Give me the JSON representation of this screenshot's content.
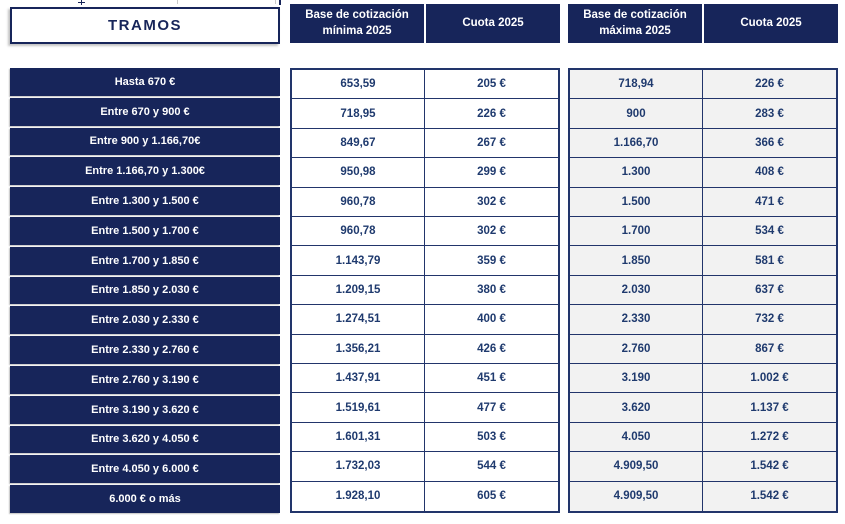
{
  "colors": {
    "navy": "#17255a",
    "cell_text": "#1f3a6e",
    "border": "#22356b",
    "max_cell_background": "#f2f2f2"
  },
  "headers": {
    "tramos": "TRAMOS",
    "base_min": "Base de cotización mínima 2025",
    "cuota_min": "Cuota 2025",
    "base_max": "Base de cotización máxima 2025",
    "cuota_max": "Cuota 2025"
  },
  "rows": [
    {
      "tramo": "Hasta 670 €",
      "base_min": "653,59",
      "cuota_min": "205 €",
      "base_max": "718,94",
      "cuota_max": "226 €"
    },
    {
      "tramo": "Entre 670 y 900 €",
      "base_min": "718,95",
      "cuota_min": "226 €",
      "base_max": "900",
      "cuota_max": "283 €"
    },
    {
      "tramo": "Entre 900 y 1.166,70€",
      "base_min": "849,67",
      "cuota_min": "267 €",
      "base_max": "1.166,70",
      "cuota_max": "366 €"
    },
    {
      "tramo": "Entre 1.166,70 y 1.300€",
      "base_min": "950,98",
      "cuota_min": "299 €",
      "base_max": "1.300",
      "cuota_max": "408 €"
    },
    {
      "tramo": "Entre 1.300 y 1.500 €",
      "base_min": "960,78",
      "cuota_min": "302 €",
      "base_max": "1.500",
      "cuota_max": "471 €"
    },
    {
      "tramo": "Entre 1.500 y 1.700 €",
      "base_min": "960,78",
      "cuota_min": "302 €",
      "base_max": "1.700",
      "cuota_max": "534 €"
    },
    {
      "tramo": "Entre 1.700 y 1.850 €",
      "base_min": "1.143,79",
      "cuota_min": "359 €",
      "base_max": "1.850",
      "cuota_max": "581 €"
    },
    {
      "tramo": "Entre 1.850 y 2.030 €",
      "base_min": "1.209,15",
      "cuota_min": "380 €",
      "base_max": "2.030",
      "cuota_max": "637 €"
    },
    {
      "tramo": "Entre 2.030 y 2.330 €",
      "base_min": "1.274,51",
      "cuota_min": "400 €",
      "base_max": "2.330",
      "cuota_max": "732 €"
    },
    {
      "tramo": "Entre 2.330 y 2.760 €",
      "base_min": "1.356,21",
      "cuota_min": "426 €",
      "base_max": "2.760",
      "cuota_max": "867 €"
    },
    {
      "tramo": "Entre 2.760 y 3.190 €",
      "base_min": "1.437,91",
      "cuota_min": "451 €",
      "base_max": "3.190",
      "cuota_max": "1.002 €"
    },
    {
      "tramo": "Entre 3.190 y 3.620 €",
      "base_min": "1.519,61",
      "cuota_min": "477 €",
      "base_max": "3.620",
      "cuota_max": "1.137 €"
    },
    {
      "tramo": "Entre 3.620 y 4.050 €",
      "base_min": "1.601,31",
      "cuota_min": "503 €",
      "base_max": "4.050",
      "cuota_max": "1.272 €"
    },
    {
      "tramo": "Entre 4.050 y 6.000 €",
      "base_min": "1.732,03",
      "cuota_min": "544 €",
      "base_max": "4.909,50",
      "cuota_max": "1.542 €"
    },
    {
      "tramo": "6.000 € o más",
      "base_min": "1.928,10",
      "cuota_min": "605 €",
      "base_max": "4.909,50",
      "cuota_max": "1.542 €"
    }
  ]
}
